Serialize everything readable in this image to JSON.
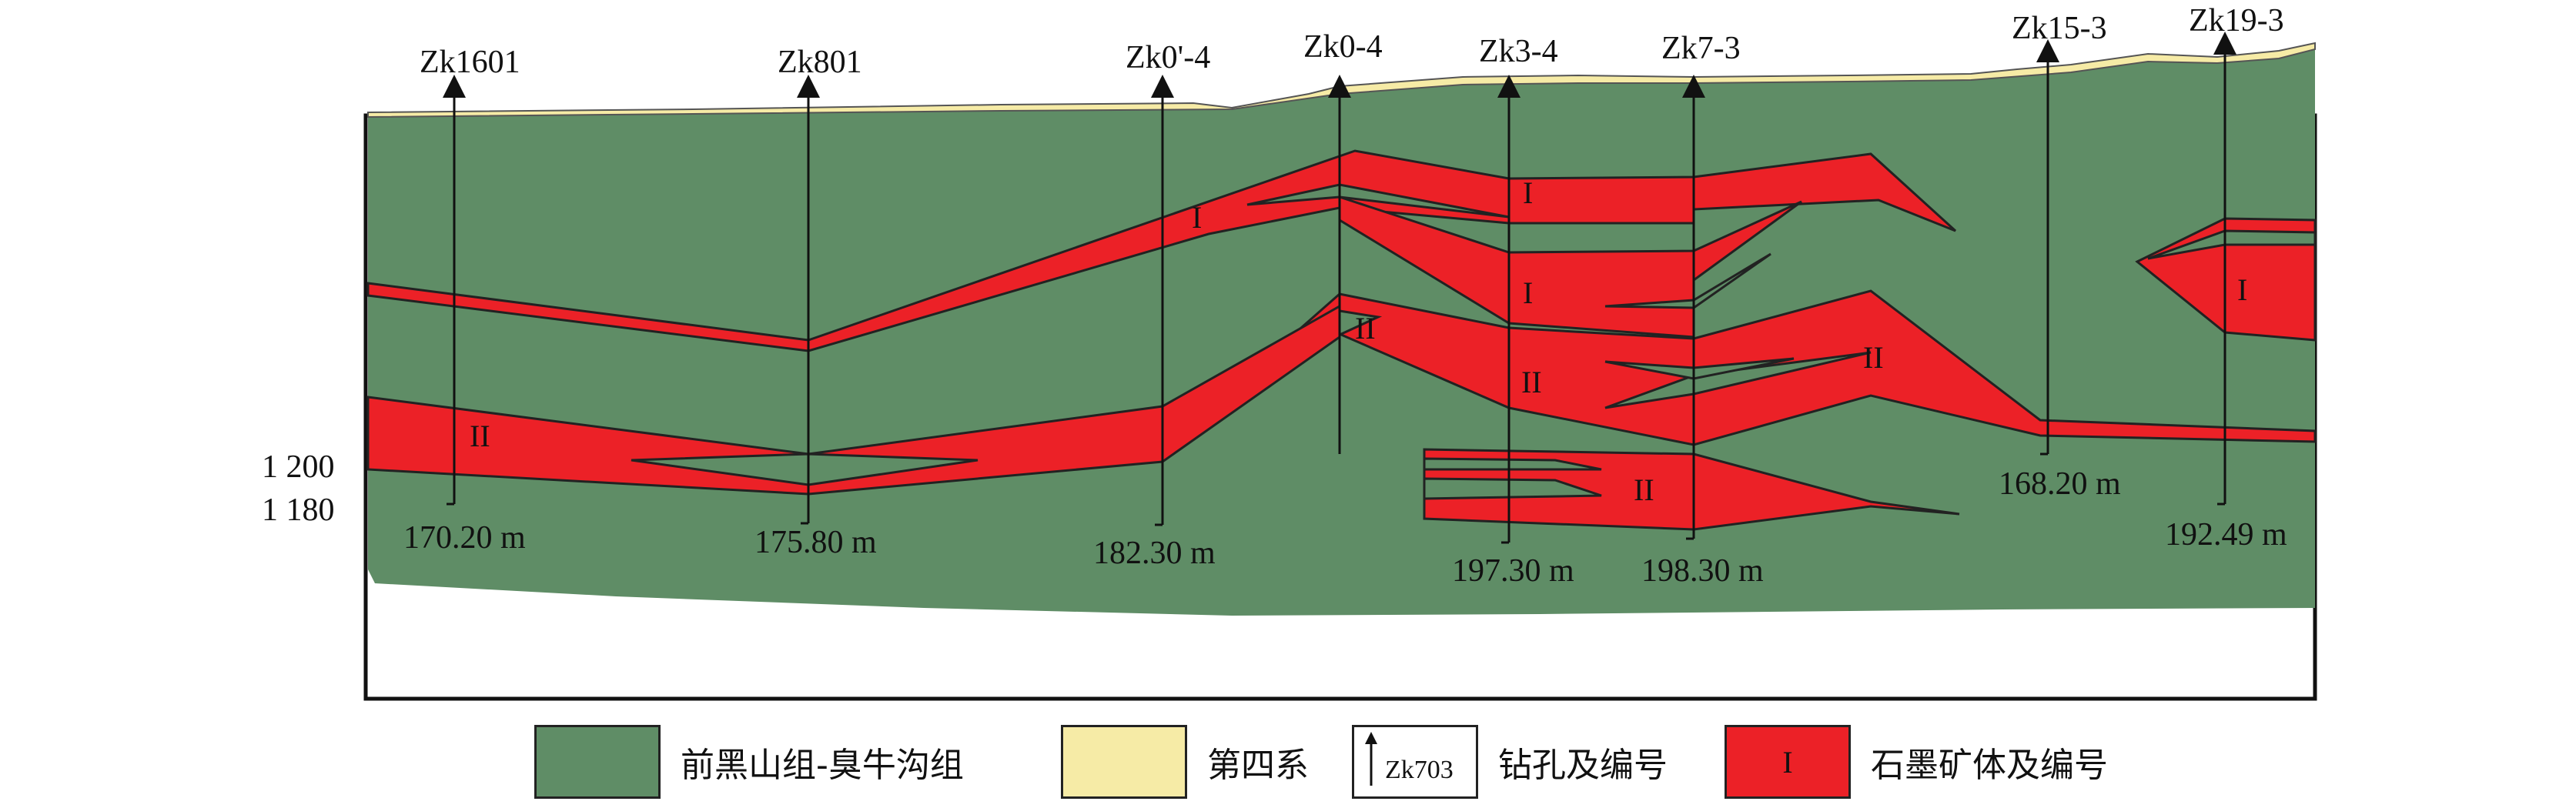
{
  "elevation_labels": [
    "1 200",
    "1 180"
  ],
  "drillholes": [
    {
      "name": "Zk1601",
      "depth": "170.20  m"
    },
    {
      "name": "Zk801",
      "depth": "175.80 m"
    },
    {
      "name": "Zk0'-4",
      "depth": "182.30 m"
    },
    {
      "name": "Zk0-4",
      "depth": ""
    },
    {
      "name": "Zk3-4",
      "depth": "197.30 m"
    },
    {
      "name": "Zk7-3",
      "depth": "198.30  m"
    },
    {
      "name": "Zk15-3",
      "depth": "168.20 m"
    },
    {
      "name": "Zk19-3",
      "depth": "192.49 m"
    }
  ],
  "ore_bodies": {
    "I": "I",
    "II": "II"
  },
  "legend": {
    "formation": "前黑山组-臭牛沟组",
    "quaternary": "第四系",
    "drill_sample": "Zk703",
    "drill": "钻孔及编号",
    "ore_sample": "I",
    "ore": "石墨矿体及编号"
  },
  "colors": {
    "formation": "#5f8d66",
    "quaternary": "#f6eba6",
    "ore": "#ec2127",
    "outline": "#222222"
  }
}
